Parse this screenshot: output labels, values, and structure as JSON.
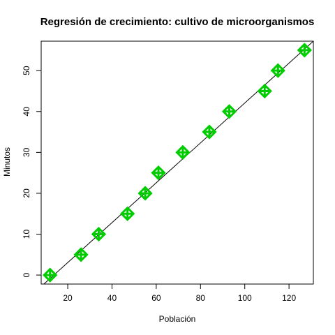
{
  "chart_data": {
    "type": "scatter",
    "title": "Regresión de crecimiento: cultivo de microorganismos",
    "xlabel": "Población",
    "ylabel": "Minutos",
    "xlim": [
      8,
      131
    ],
    "ylim": [
      -2.2,
      57.2
    ],
    "x_ticks": [
      20,
      40,
      60,
      80,
      100,
      120
    ],
    "y_ticks": [
      0,
      10,
      20,
      30,
      40,
      50
    ],
    "grid": false,
    "points": [
      {
        "x": 12,
        "y": 0
      },
      {
        "x": 26,
        "y": 5
      },
      {
        "x": 34,
        "y": 10
      },
      {
        "x": 47,
        "y": 15
      },
      {
        "x": 55,
        "y": 20
      },
      {
        "x": 61,
        "y": 25
      },
      {
        "x": 72,
        "y": 30
      },
      {
        "x": 84,
        "y": 35
      },
      {
        "x": 93,
        "y": 40
      },
      {
        "x": 109,
        "y": 45
      },
      {
        "x": 115,
        "y": 50
      },
      {
        "x": 127,
        "y": 55
      }
    ],
    "regression_line": {
      "x": [
        8,
        131
      ],
      "y": [
        -2.8,
        57.2
      ]
    },
    "marker_color": "#00cc00",
    "line_color": "#000000"
  }
}
